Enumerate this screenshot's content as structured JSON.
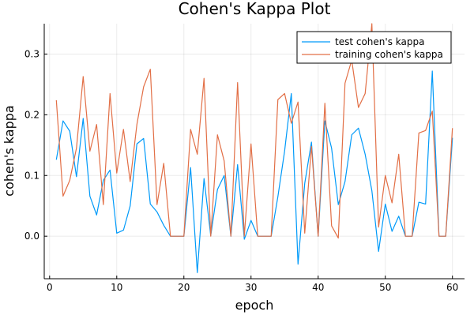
{
  "chart_data": {
    "type": "line",
    "title": "Cohen's Kappa Plot",
    "xlabel": "epoch",
    "ylabel": "cohen's kappa",
    "xlim": [
      -0.8,
      61.8
    ],
    "ylim": [
      -0.07,
      0.35
    ],
    "xticks": [
      0,
      10,
      20,
      30,
      40,
      50,
      60
    ],
    "xtick_labels": [
      "0",
      "10",
      "20",
      "30",
      "40",
      "50",
      "60"
    ],
    "yticks": [
      0.0,
      0.1,
      0.2,
      0.3
    ],
    "ytick_labels": [
      "0.0",
      "0.1",
      "0.2",
      "0.3"
    ],
    "grid": true,
    "legend_position": "top-right",
    "x": [
      1,
      2,
      3,
      4,
      5,
      6,
      7,
      8,
      9,
      10,
      11,
      12,
      13,
      14,
      15,
      16,
      17,
      18,
      19,
      20,
      21,
      22,
      23,
      24,
      25,
      26,
      27,
      28,
      29,
      30,
      31,
      32,
      33,
      34,
      35,
      36,
      37,
      38,
      39,
      40,
      41,
      42,
      43,
      44,
      45,
      46,
      47,
      48,
      49,
      50,
      51,
      52,
      53,
      54,
      55,
      56,
      57,
      58,
      59,
      60
    ],
    "series": [
      {
        "name": "test cohen's kappa",
        "color": "#009AF9",
        "values": [
          0.126,
          0.19,
          0.173,
          0.098,
          0.194,
          0.066,
          0.035,
          0.092,
          0.109,
          0.005,
          0.01,
          0.05,
          0.152,
          0.161,
          0.053,
          0.04,
          0.018,
          0.0,
          0.0,
          0.0,
          0.113,
          -0.06,
          0.095,
          0.001,
          0.077,
          0.1,
          0.0,
          0.118,
          -0.005,
          0.026,
          0.0,
          0.0,
          0.0,
          0.065,
          0.14,
          0.235,
          -0.046,
          0.087,
          0.155,
          0.0,
          0.19,
          0.145,
          0.052,
          0.09,
          0.167,
          0.178,
          0.135,
          0.075,
          -0.025,
          0.053,
          0.008,
          0.033,
          0.0,
          0.0,
          0.056,
          0.053,
          0.272,
          0.0,
          0.0,
          0.162
        ]
      },
      {
        "name": "training cohen's kappa",
        "color": "#E26F46",
        "values": [
          0.224,
          0.066,
          0.092,
          0.145,
          0.263,
          0.14,
          0.184,
          0.052,
          0.235,
          0.104,
          0.176,
          0.09,
          0.184,
          0.246,
          0.275,
          0.052,
          0.12,
          0.0,
          0.0,
          0.0,
          0.176,
          0.135,
          0.26,
          0.0,
          0.167,
          0.124,
          0.0,
          0.253,
          0.0,
          0.152,
          0.0,
          0.0,
          0.0,
          0.225,
          0.235,
          0.186,
          0.221,
          0.005,
          0.148,
          0.0,
          0.219,
          0.017,
          -0.003,
          0.252,
          0.29,
          0.212,
          0.235,
          0.35,
          0.015,
          0.1,
          0.055,
          0.135,
          0.0,
          0.0,
          0.17,
          0.174,
          0.206,
          0.0,
          0.0,
          0.178
        ]
      }
    ]
  }
}
